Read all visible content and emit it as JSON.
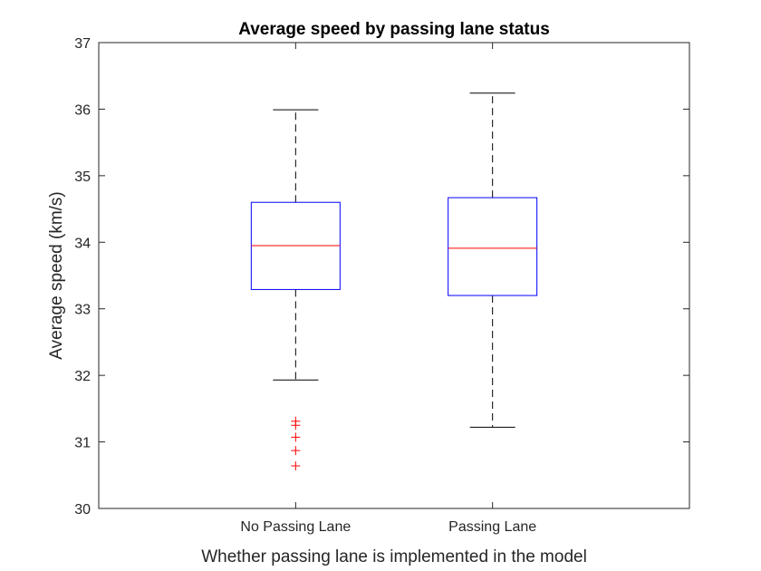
{
  "chart_data": {
    "type": "box",
    "title": "Average speed by passing lane status",
    "xlabel": "Whether passing lane is implemented in the model",
    "ylabel": "Average speed (km/s)",
    "ylim": [
      30,
      37
    ],
    "yticks": [
      30,
      31,
      32,
      33,
      34,
      35,
      36,
      37
    ],
    "grid": false,
    "categories": [
      "No Passing Lane",
      "Passing Lane"
    ],
    "boxes": [
      {
        "category": "No Passing Lane",
        "whisker_low": 31.93,
        "q1": 33.29,
        "median": 33.95,
        "q3": 34.6,
        "whisker_high": 35.99,
        "outliers": [
          31.31,
          31.25,
          31.07,
          30.87,
          30.64
        ]
      },
      {
        "category": "Passing Lane",
        "whisker_low": 31.22,
        "q1": 33.2,
        "median": 33.91,
        "q3": 34.67,
        "whisker_high": 36.24,
        "outliers": []
      }
    ],
    "colors": {
      "box": "#0000ff",
      "median": "#ff0000",
      "whisker": "#000000",
      "outlier": "#ff0000",
      "axes": "#262626"
    }
  }
}
